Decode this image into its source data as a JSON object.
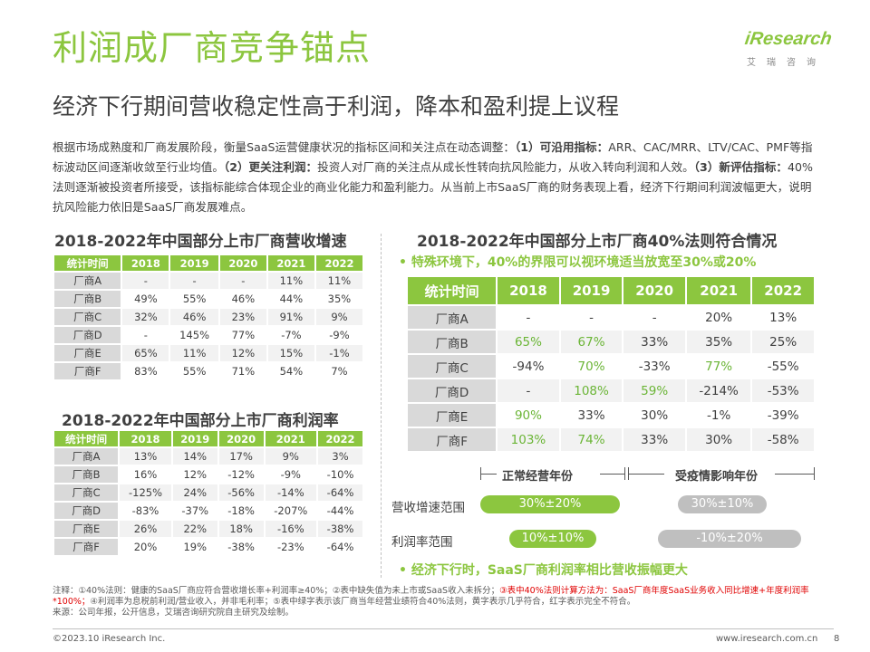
{
  "title": "利润成厂商竞争锚点",
  "subtitle": "经济下行期间营收稳定性高于利润，降本和盈利提上议程",
  "logo": {
    "wordmark": "iResearch",
    "tagline": "艾瑞咨询"
  },
  "intro": {
    "p1": "根据市场成熟度和厂商发展阶段，衡量SaaS运营健康状况的指标区间和关注点在动态调整：",
    "b1": "（1）可沿用指标：",
    "p2": "ARR、CAC/MRR、LTV/CAC、PMF等指标波动区间逐渐收敛至行业均值。",
    "b2": "（2）更关注利润：",
    "p3": "投资人对厂商的关注点从成长性转向抗风险能力，从收入转向利润和人效。",
    "b3": "（3）新评估指标：",
    "p4": "40%法则逐渐被投资者所接受，该指标能综合体现企业的商业化能力和盈利能力。从当前上市SaaS厂商的财务表现上看，经济下行期间利润波幅更大，说明抗风险能力依旧是SaaS厂商发展难点。"
  },
  "revenue_table": {
    "title": "2018-2022年中国部分上市厂商营收增速",
    "headers": [
      "统计时间",
      "2018",
      "2019",
      "2020",
      "2021",
      "2022"
    ],
    "rows": [
      [
        "厂商A",
        "-",
        "-",
        "-",
        "11%",
        "11%"
      ],
      [
        "厂商B",
        "49%",
        "55%",
        "46%",
        "44%",
        "35%"
      ],
      [
        "厂商C",
        "32%",
        "46%",
        "23%",
        "91%",
        "9%"
      ],
      [
        "厂商D",
        "-",
        "145%",
        "77%",
        "-7%",
        "-9%"
      ],
      [
        "厂商E",
        "65%",
        "11%",
        "12%",
        "15%",
        "-1%"
      ],
      [
        "厂商F",
        "83%",
        "55%",
        "71%",
        "54%",
        "7%"
      ]
    ]
  },
  "profit_table": {
    "title": "2018-2022年中国部分上市厂商利润率",
    "headers": [
      "统计时间",
      "2018",
      "2019",
      "2020",
      "2021",
      "2022"
    ],
    "rows": [
      [
        "厂商A",
        "13%",
        "14%",
        "17%",
        "9%",
        "3%"
      ],
      [
        "厂商B",
        "16%",
        "12%",
        "-12%",
        "-9%",
        "-10%"
      ],
      [
        "厂商C",
        "-125%",
        "24%",
        "-56%",
        "-14%",
        "-64%"
      ],
      [
        "厂商D",
        "-83%",
        "-37%",
        "-18%",
        "-207%",
        "-44%"
      ],
      [
        "厂商E",
        "26%",
        "22%",
        "18%",
        "-16%",
        "-38%"
      ],
      [
        "厂商F",
        "20%",
        "19%",
        "-38%",
        "-23%",
        "-64%"
      ]
    ]
  },
  "rule40_table": {
    "title": "2018-2022年中国部分上市厂商40%法则符合情况",
    "bullet": "特殊环境下，40%的界限可以视环境适当放宽至30%或20%",
    "headers": [
      "统计时间",
      "2018",
      "2019",
      "2020",
      "2021",
      "2022"
    ],
    "rows": [
      [
        "厂商A",
        "-",
        "-",
        "-",
        "20%",
        "13%"
      ],
      [
        "厂商B",
        "65%",
        "67%",
        "33%",
        "35%",
        "25%"
      ],
      [
        "厂商C",
        "-94%",
        "70%",
        "-33%",
        "77%",
        "-55%"
      ],
      [
        "厂商D",
        "-",
        "108%",
        "59%",
        "-214%",
        "-53%"
      ],
      [
        "厂商E",
        "90%",
        "33%",
        "30%",
        "-1%",
        "-39%"
      ],
      [
        "厂商F",
        "103%",
        "74%",
        "33%",
        "30%",
        "-58%"
      ]
    ],
    "green_cells": [
      [
        1,
        1
      ],
      [
        1,
        2
      ],
      [
        2,
        2
      ],
      [
        2,
        4
      ],
      [
        3,
        2
      ],
      [
        3,
        3
      ],
      [
        4,
        1
      ],
      [
        5,
        1
      ],
      [
        5,
        2
      ]
    ],
    "colors": {
      "green": "#6bb536",
      "header": "#8cc63f"
    }
  },
  "ranges": {
    "normal_label": "正常经营年份",
    "epidemic_label": "受疫情影响年份",
    "revenue_label": "营收增速范围",
    "revenue_normal": "30%±20%",
    "revenue_epidemic": "30%±10%",
    "profit_label": "利润率范围",
    "profit_normal": "10%±10%",
    "profit_epidemic": "-10%±20%",
    "bullet": "经济下行时，SaaS厂商利润率相比营收振幅更大"
  },
  "note": {
    "n1": "注释：①40%法则：健康的SaaS厂商应符合营收增长率+利润率≥40%；②表中缺失值为未上市或SaaS收入未拆分；",
    "n2": "③表中40%法则计算方法为：SaaS厂商年度SaaS业务收入同比增速+年度利润率*100%；",
    "n3": "④利润率为息税前利润/营业收入，并非毛利率；⑤表中绿字表示该厂商当年经营业绩符合40%法则，黄字表示几乎符合，红字表示完全不符合。",
    "source": "来源：公司年报，公开信息，艾瑞咨询研究院自主研究及绘制。"
  },
  "footer": {
    "copyright": "©2023.10 iResearch Inc.",
    "url": "www.iresearch.com.cn",
    "page": "8"
  }
}
